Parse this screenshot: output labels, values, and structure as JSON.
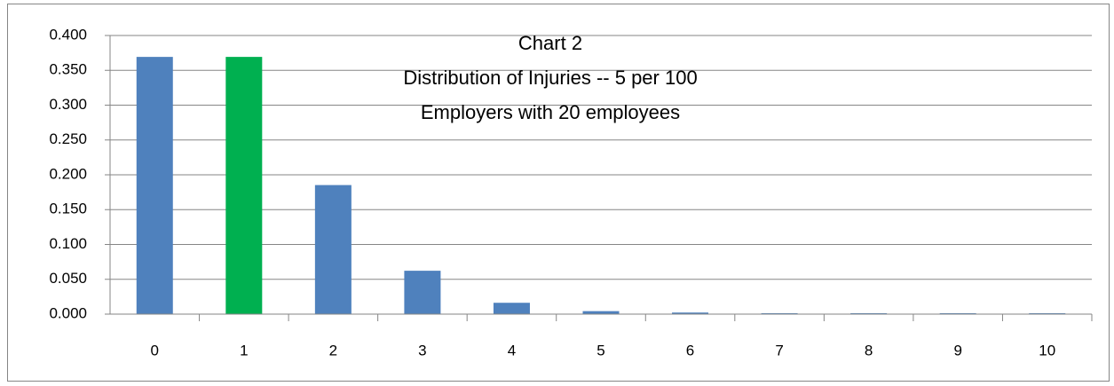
{
  "chart_data": {
    "type": "bar",
    "title": [
      "Chart 2",
      "Distribution of Injuries -- 5 per 100",
      "Employers with 20 employees"
    ],
    "categories": [
      "0",
      "1",
      "2",
      "3",
      "4",
      "5",
      "6",
      "7",
      "8",
      "9",
      "10"
    ],
    "values": [
      0.368,
      0.368,
      0.184,
      0.061,
      0.015,
      0.003,
      0.001,
      0,
      0,
      0,
      0
    ],
    "colors": [
      "#4f81bd",
      "#00b050",
      "#4f81bd",
      "#4f81bd",
      "#4f81bd",
      "#4f81bd",
      "#4f81bd",
      "#4f81bd",
      "#4f81bd",
      "#4f81bd",
      "#4f81bd"
    ],
    "ylim": [
      0,
      0.4
    ],
    "yticks": [
      {
        "value": 0,
        "label": "0.000"
      },
      {
        "value": 0.05,
        "label": "0.050"
      },
      {
        "value": 0.1,
        "label": "0.100"
      },
      {
        "value": 0.15,
        "label": "0.150"
      },
      {
        "value": 0.2,
        "label": "0.200"
      },
      {
        "value": 0.25,
        "label": "0.250"
      },
      {
        "value": 0.3,
        "label": "0.300"
      },
      {
        "value": 0.35,
        "label": "0.350"
      },
      {
        "value": 0.4,
        "label": "0.400"
      }
    ],
    "grid": true
  }
}
